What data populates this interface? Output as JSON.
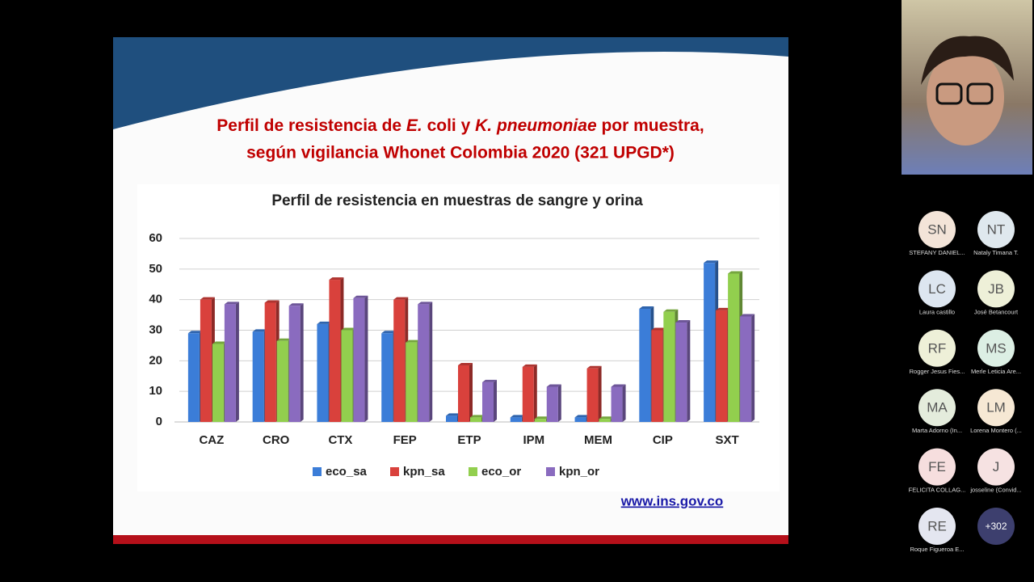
{
  "slide": {
    "title_line1": [
      "Perfil de resistencia de ",
      "E.",
      " coli y ",
      "K. pneumoniae",
      " por muestra,"
    ],
    "title_line2": "según vigilancia Whonet Colombia 2020  (321 UPGD*)",
    "url": "www.ins.gov.co"
  },
  "chart_data": {
    "type": "bar",
    "title": "Perfil de resistencia en muestras de sangre y orina",
    "categories": [
      "CAZ",
      "CRO",
      "CTX",
      "FEP",
      "ETP",
      "IPM",
      "MEM",
      "CIP",
      "SXT"
    ],
    "series": [
      {
        "name": "eco_sa",
        "color": "#3b7dd8",
        "values": [
          29,
          29.5,
          32,
          29,
          2,
          1.5,
          1.5,
          37,
          52
        ]
      },
      {
        "name": "kpn_sa",
        "color": "#d9413c",
        "values": [
          40,
          39,
          46.5,
          40,
          18.5,
          18,
          17.5,
          30,
          36.5
        ]
      },
      {
        "name": "eco_or",
        "color": "#92cf4e",
        "values": [
          25.5,
          26.5,
          30,
          26,
          1.5,
          1,
          1,
          36,
          48.5
        ]
      },
      {
        "name": "kpn_or",
        "color": "#8a6bbf",
        "values": [
          38.5,
          38,
          40.5,
          38.5,
          13,
          11.5,
          11.5,
          32.5,
          34.5
        ]
      }
    ],
    "ylim": [
      0,
      60
    ],
    "yticks": [
      0,
      10,
      20,
      30,
      40,
      50,
      60
    ],
    "grid": true,
    "legend": "bottom"
  },
  "participants": [
    {
      "initials": "SN",
      "name": "STEFANY DANIEL...",
      "color": "#f3e4d8"
    },
    {
      "initials": "NT",
      "name": "Nataly Timana T.",
      "color": "#dfe8ee"
    },
    {
      "initials": "LC",
      "name": "Laura castillo",
      "color": "#dde6f0"
    },
    {
      "initials": "JB",
      "name": "José Betancourt",
      "color": "#eef0d8"
    },
    {
      "initials": "RF",
      "name": "Rogger Jesus Fies...",
      "color": "#eef0d8"
    },
    {
      "initials": "MS",
      "name": "Merle Leticia Are...",
      "color": "#dcefe4"
    },
    {
      "initials": "MA",
      "name": "Marta Adorno (In...",
      "color": "#e4ecdc"
    },
    {
      "initials": "LM",
      "name": "Lorena Montero (...",
      "color": "#f6e8d4"
    },
    {
      "initials": "FE",
      "name": "FELICITA COLLAG...",
      "color": "#f6dede"
    },
    {
      "initials": "J",
      "name": "josseline (Convid...",
      "color": "#f6e2e2"
    },
    {
      "initials": "RE",
      "name": "Roque Figueroa E...",
      "color": "#e4e6f0"
    }
  ],
  "more": "+302"
}
